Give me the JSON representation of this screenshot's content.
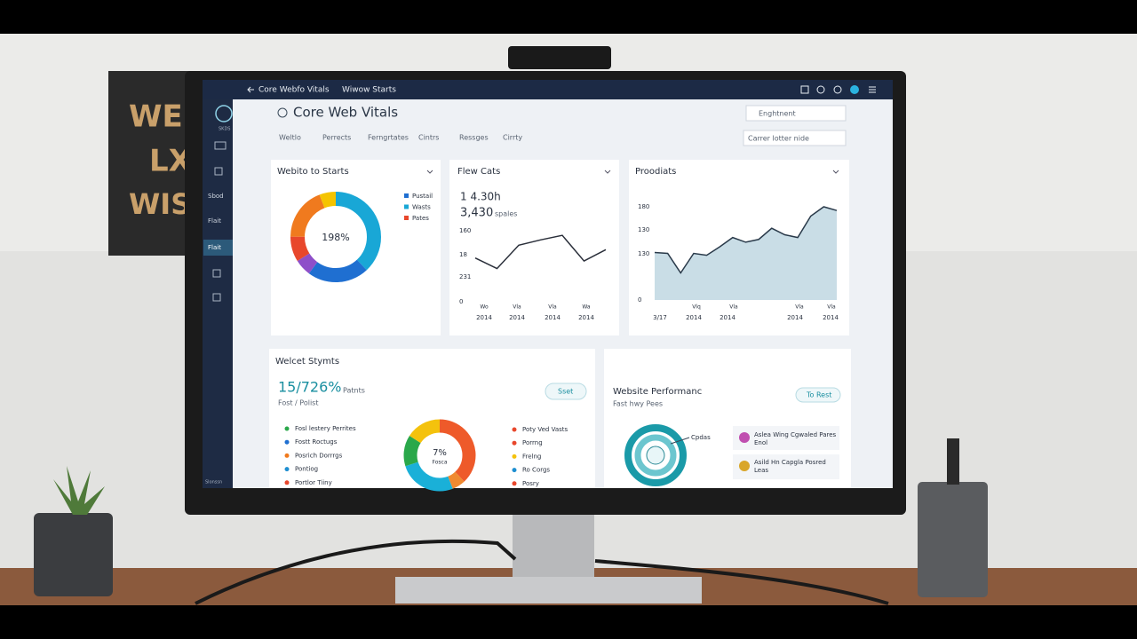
{
  "poster": {
    "lines": [
      "WE",
      "LX",
      "WISI"
    ]
  },
  "topbar": {
    "breadcrumb": "Core Webfo Vitals",
    "menu": "Wiwow Starts"
  },
  "sidebar": {
    "logo": "SKDS",
    "items": [
      "Sbod",
      "Flait",
      "Flait"
    ],
    "footer": "Slonssn"
  },
  "header": {
    "title": "Core Web Vitals",
    "search": "Enghtnent",
    "filters": [
      "Weltlo",
      "Perrects",
      "Ferngrtates",
      "Cintrs",
      "Ressges",
      "Cirrty"
    ],
    "select": "Carrer lotter nide"
  },
  "donut_panel": {
    "title": "Webito to Starts",
    "center": "198%",
    "legend": [
      {
        "name": "Pustail",
        "color": "#1f6fd1"
      },
      {
        "name": "Wasts",
        "color": "#19a7d6"
      },
      {
        "name": "Pates",
        "color": "#e8472c"
      }
    ],
    "segments": [
      {
        "color": "#19a7d6",
        "value": 38
      },
      {
        "color": "#1f6fd1",
        "value": 22
      },
      {
        "color": "#8e4fc9",
        "value": 6
      },
      {
        "color": "#e8472c",
        "value": 9
      },
      {
        "color": "#f07a1e",
        "value": 19
      },
      {
        "color": "#f5c400",
        "value": 6
      }
    ]
  },
  "line_panel": {
    "title": "Flew Cats",
    "stat": "1 4.30h",
    "count": "3,430",
    "unit": "spales",
    "y_labels": [
      "160",
      "18",
      "231",
      "0"
    ],
    "x_labels": [
      [
        "Wo",
        "2014"
      ],
      [
        "Vla",
        "2014"
      ],
      [
        "Vla",
        "2014"
      ],
      [
        "Wa",
        "2014"
      ]
    ],
    "ylim": [
      0,
      100
    ],
    "color": "#2a2f3a",
    "values": [
      58,
      44,
      75,
      82,
      88,
      54,
      69
    ]
  },
  "area_panel": {
    "title": "Proodiats",
    "y_labels": [
      "180",
      "130",
      "130",
      "0"
    ],
    "x_top": [
      "Vlq",
      "Vla",
      "Vla",
      "Vla"
    ],
    "x_bottom": [
      "3/17",
      "2014",
      "2014",
      "2014",
      "2014"
    ],
    "ylim": [
      0,
      100
    ],
    "color": "#2a3a4a",
    "fill": "#c9dde6",
    "values": [
      51,
      50,
      29,
      50,
      48,
      57,
      67,
      62,
      65,
      77,
      70,
      67,
      90,
      100,
      96
    ]
  },
  "status_panel": {
    "title": "Welcet Stymts",
    "big": "15/726%",
    "unit": "Patnts",
    "sub": "Fost / Polist",
    "button": "Sset",
    "center": "7%",
    "center_sub": "Fosca",
    "left_legend": [
      {
        "name": "Fosl lestery Perrites",
        "color": "#2aa84a"
      },
      {
        "name": "Fostt Roctugs",
        "color": "#1f6fd1"
      },
      {
        "name": "Posrich Dorrrgs",
        "color": "#f07a1e"
      },
      {
        "name": "Pontiog",
        "color": "#1f8fd1"
      },
      {
        "name": "Portlor Tiiny",
        "color": "#e8472c"
      }
    ],
    "right_legend": [
      {
        "name": "Poty Ved Vasts",
        "color": "#e8472c"
      },
      {
        "name": "Porrng",
        "color": "#e8472c"
      },
      {
        "name": "Frelng",
        "color": "#f4c20d"
      },
      {
        "name": "Ro Corgs",
        "color": "#1f8fd1"
      },
      {
        "name": "Posry",
        "color": "#e8472c"
      }
    ],
    "segments": [
      {
        "color": "#ee5a2a",
        "value": 38
      },
      {
        "color": "#f08a30",
        "value": 6
      },
      {
        "color": "#1ab0d8",
        "value": 26
      },
      {
        "color": "#2aa84a",
        "value": 14
      },
      {
        "color": "#f4c20d",
        "value": 16
      }
    ]
  },
  "perf_panel": {
    "title": "Website Performanc",
    "sub": "Fast hwy Pees",
    "button": "To Rest",
    "callout": "Cpdas",
    "items": [
      [
        "Aslea Wing Cgwaled Pares",
        "Enol"
      ],
      [
        "Asild Hn Capgla Posred",
        "Leas"
      ]
    ]
  }
}
